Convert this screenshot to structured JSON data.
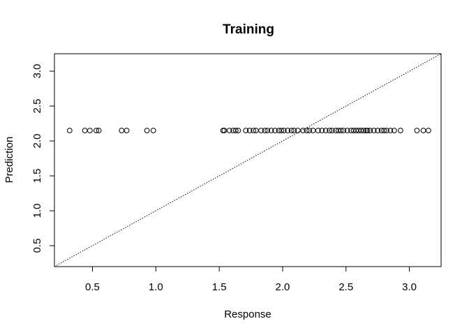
{
  "chart_data": {
    "type": "scatter",
    "title": "Training",
    "xlabel": "Response",
    "ylabel": "Prediction",
    "xlim": [
      0.2,
      3.25
    ],
    "ylim": [
      0.2,
      3.25
    ],
    "x_ticks": [
      "0.5",
      "1.0",
      "1.5",
      "2.0",
      "2.5",
      "3.0"
    ],
    "y_ticks": [
      "0.5",
      "1.0",
      "1.5",
      "2.0",
      "2.5",
      "3.0"
    ],
    "grid": false,
    "marker": "open-circle",
    "reference_line": {
      "type": "identity",
      "style": "dotted",
      "from": [
        0.2,
        0.2
      ],
      "to": [
        3.25,
        3.25
      ]
    },
    "points": {
      "y": 2.15,
      "x": [
        0.32,
        0.44,
        0.48,
        0.53,
        0.55,
        0.73,
        0.77,
        0.93,
        0.98,
        1.53,
        1.54,
        1.58,
        1.61,
        1.63,
        1.65,
        1.71,
        1.74,
        1.77,
        1.79,
        1.83,
        1.86,
        1.88,
        1.91,
        1.94,
        1.97,
        1.99,
        2.01,
        2.04,
        2.07,
        2.09,
        2.12,
        2.16,
        2.19,
        2.21,
        2.24,
        2.28,
        2.31,
        2.34,
        2.37,
        2.39,
        2.42,
        2.44,
        2.46,
        2.48,
        2.51,
        2.54,
        2.56,
        2.58,
        2.6,
        2.62,
        2.64,
        2.66,
        2.67,
        2.69,
        2.72,
        2.75,
        2.78,
        2.8,
        2.82,
        2.85,
        2.88,
        2.93,
        3.06,
        3.11,
        3.15
      ]
    }
  }
}
